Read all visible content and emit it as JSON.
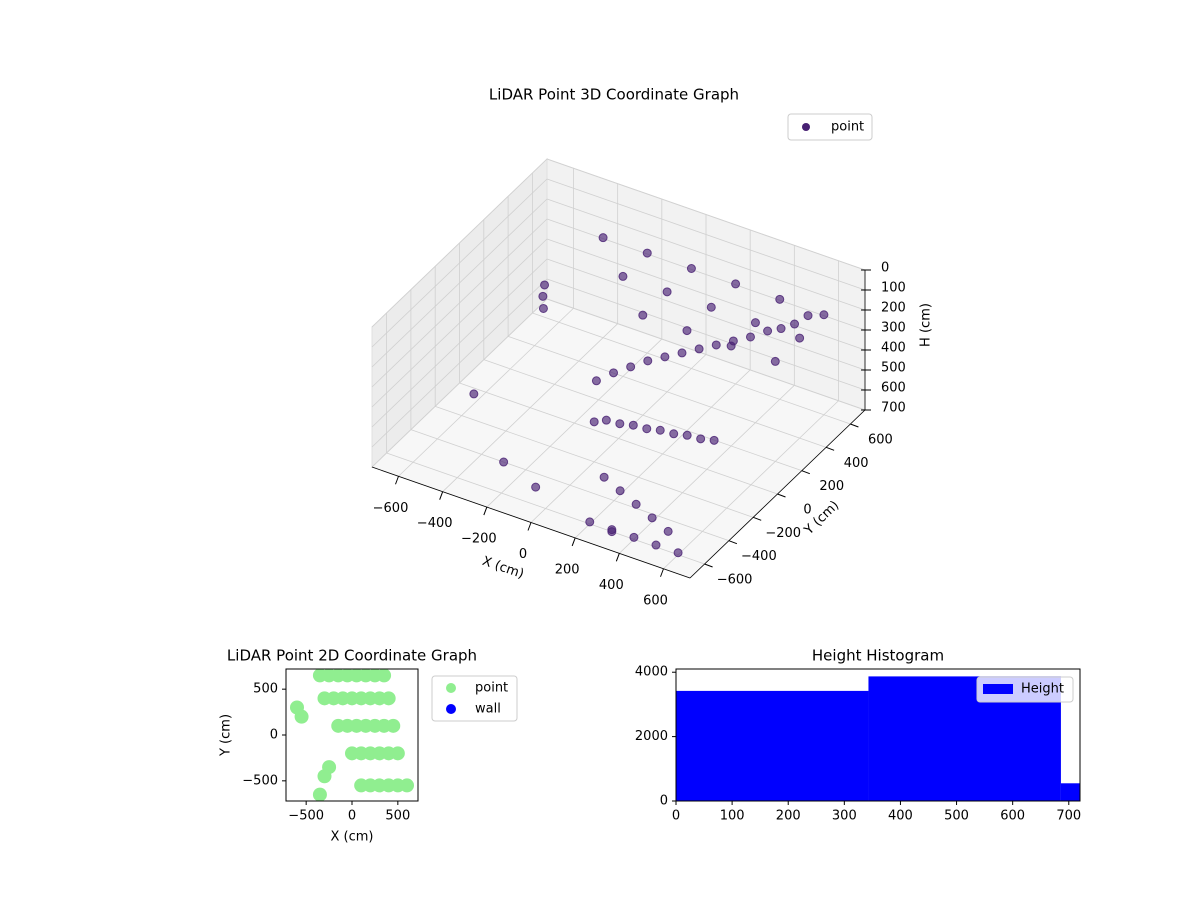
{
  "chart_data": [
    {
      "type": "scatter3d",
      "title": "LiDAR Point 3D Coordinate Graph",
      "xlabel": "X (cm)",
      "ylabel": "Y (cm)",
      "zlabel": "H (cm)",
      "xlim": [
        -720,
        720
      ],
      "ylim": [
        -720,
        720
      ],
      "zlim": [
        0,
        700
      ],
      "z_inverted": true,
      "xticks": [
        {
          "value": -600,
          "label": "−600"
        },
        {
          "value": -400,
          "label": "−400"
        },
        {
          "value": -200,
          "label": "−200"
        },
        0,
        200,
        400,
        600
      ],
      "yticks": [
        {
          "value": -600,
          "label": "−600"
        },
        {
          "value": -400,
          "label": "−400"
        },
        {
          "value": -200,
          "label": "−200"
        },
        0,
        200,
        400,
        600
      ],
      "zticks": [
        0,
        100,
        200,
        300,
        400,
        500,
        600,
        700
      ],
      "grid": true,
      "legend": "upper right",
      "series": [
        {
          "name": "point",
          "color": "#482173",
          "x": [
            -400,
            -200,
            0,
            200,
            400,
            600,
            -200,
            0,
            200,
            400,
            600,
            0,
            200,
            400,
            600,
            -500,
            -480,
            -450,
            -100,
            -50,
            0,
            50,
            100,
            150,
            200,
            250,
            300,
            350,
            400,
            450,
            500,
            550,
            0,
            50,
            100,
            150,
            200,
            250,
            300,
            350,
            400,
            100,
            200,
            300,
            400,
            500,
            200,
            300,
            400,
            500,
            600,
            -600,
            -300,
            -100,
            0,
            300
          ],
          "y": [
            600,
            600,
            600,
            600,
            600,
            600,
            400,
            400,
            400,
            400,
            400,
            200,
            200,
            200,
            200,
            300,
            250,
            200,
            0,
            50,
            100,
            150,
            200,
            250,
            300,
            350,
            400,
            450,
            500,
            520,
            540,
            560,
            -100,
            -80,
            -60,
            -40,
            -20,
            0,
            20,
            40,
            60,
            -300,
            -350,
            -400,
            -450,
            -500,
            -600,
            -600,
            -600,
            -600,
            -600,
            -100,
            -400,
            -500,
            -200,
            -600
          ],
          "z": [
            200,
            200,
            200,
            200,
            200,
            200,
            200,
            200,
            200,
            200,
            200,
            200,
            200,
            200,
            200,
            300,
            320,
            340,
            450,
            420,
            400,
            380,
            370,
            360,
            350,
            340,
            330,
            320,
            300,
            280,
            250,
            200,
            550,
            560,
            560,
            570,
            570,
            580,
            580,
            590,
            590,
            680,
            680,
            680,
            680,
            680,
            690,
            690,
            690,
            690,
            690,
            650,
            700,
            690,
            500,
            700
          ]
        }
      ]
    },
    {
      "type": "scatter",
      "title": "LiDAR Point 2D Coordinate Graph",
      "xlabel": "X (cm)",
      "ylabel": "Y (cm)",
      "xlim": [
        -720,
        720
      ],
      "ylim": [
        -720,
        720
      ],
      "xticks": [
        {
          "value": -500,
          "label": "−500"
        },
        0,
        500
      ],
      "yticks": [
        {
          "value": -500,
          "label": "−500"
        },
        0,
        500
      ],
      "legend": "outside right",
      "series": [
        {
          "name": "point",
          "color": "#90ee90",
          "x": [
            -350,
            -250,
            -150,
            -50,
            50,
            150,
            250,
            350,
            -300,
            -200,
            -100,
            0,
            100,
            200,
            300,
            400,
            -150,
            -50,
            50,
            150,
            250,
            350,
            450,
            0,
            100,
            200,
            300,
            400,
            500,
            100,
            200,
            300,
            400,
            500,
            600,
            -600,
            -550,
            -250,
            -300,
            -350
          ],
          "y": [
            650,
            650,
            650,
            650,
            650,
            650,
            650,
            650,
            400,
            400,
            400,
            400,
            400,
            400,
            400,
            400,
            100,
            100,
            100,
            100,
            100,
            100,
            100,
            -200,
            -200,
            -200,
            -200,
            -200,
            -200,
            -550,
            -550,
            -550,
            -550,
            -550,
            -550,
            300,
            200,
            -350,
            -450,
            -650
          ]
        },
        {
          "name": "wall",
          "color": "#0000ff",
          "x": [],
          "y": []
        }
      ]
    },
    {
      "type": "histogram",
      "title": "Height Histogram",
      "color": "#0000ff",
      "bins": [
        0,
        343,
        686,
        720
      ],
      "values": [
        3420,
        3870,
        550
      ],
      "xlim": [
        0,
        720
      ],
      "ylim": [
        0,
        4100
      ],
      "xticks": [
        0,
        100,
        200,
        300,
        400,
        500,
        600,
        700
      ],
      "yticks": [
        0,
        2000,
        4000
      ],
      "legend": "upper right",
      "series_name": "Height"
    }
  ]
}
